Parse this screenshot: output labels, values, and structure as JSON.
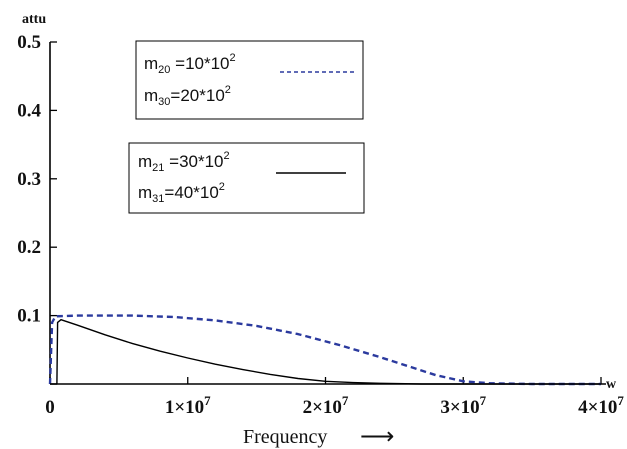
{
  "chart_data": {
    "type": "line",
    "ylabel": "attu",
    "xlabel": "Frequency",
    "xlabel_arrow": "⟶",
    "x_axis_end_label": "w",
    "xlim": [
      0,
      40000000
    ],
    "ylim": [
      0,
      0.5
    ],
    "x_ticks": [
      {
        "value": 0,
        "base": "0",
        "exp": ""
      },
      {
        "value": 10000000,
        "base": "1×10",
        "exp": "7"
      },
      {
        "value": 20000000,
        "base": "2×10",
        "exp": "7"
      },
      {
        "value": 30000000,
        "base": "3×10",
        "exp": "7"
      },
      {
        "value": 40000000,
        "base": "4×10",
        "exp": "7"
      }
    ],
    "y_ticks": [
      {
        "value": 0.1,
        "label": "0.1"
      },
      {
        "value": 0.2,
        "label": "0.2"
      },
      {
        "value": 0.3,
        "label": "0.3"
      },
      {
        "value": 0.4,
        "label": "0.4"
      },
      {
        "value": 0.5,
        "label": "0.5"
      }
    ],
    "series": [
      {
        "style": "dashed",
        "color": "#2b3a9e",
        "legend": [
          {
            "name": "m",
            "sub": "20",
            "rest": " =10*10",
            "sup": "2"
          },
          {
            "name": "m",
            "sub": "30",
            "rest": "=20*10",
            "sup": "2"
          }
        ],
        "points": [
          [
            0,
            0
          ],
          [
            150000,
            0.09
          ],
          [
            400000,
            0.099
          ],
          [
            2000000,
            0.1
          ],
          [
            6000000,
            0.1
          ],
          [
            9000000,
            0.098
          ],
          [
            12000000,
            0.093
          ],
          [
            15000000,
            0.085
          ],
          [
            18000000,
            0.073
          ],
          [
            21000000,
            0.057
          ],
          [
            24000000,
            0.039
          ],
          [
            26000000,
            0.026
          ],
          [
            28000000,
            0.013
          ],
          [
            30000000,
            0.004
          ],
          [
            32000000,
            0.001
          ],
          [
            35000000,
            0
          ],
          [
            40000000,
            0
          ]
        ]
      },
      {
        "style": "solid",
        "color": "#000000",
        "legend": [
          {
            "name": "m",
            "sub": "21",
            "rest": " =30*10",
            "sup": "2"
          },
          {
            "name": "m",
            "sub": "31",
            "rest": "=40*10",
            "sup": "2"
          }
        ],
        "points": [
          [
            0,
            0
          ],
          [
            500000,
            0
          ],
          [
            550000,
            0.09
          ],
          [
            800000,
            0.094
          ],
          [
            2000000,
            0.086
          ],
          [
            4000000,
            0.072
          ],
          [
            6000000,
            0.059
          ],
          [
            8000000,
            0.048
          ],
          [
            10000000,
            0.038
          ],
          [
            12000000,
            0.029
          ],
          [
            14000000,
            0.021
          ],
          [
            16000000,
            0.014
          ],
          [
            18000000,
            0.008
          ],
          [
            20000000,
            0.004
          ],
          [
            22000000,
            0.002
          ],
          [
            24000000,
            0.001
          ],
          [
            27000000,
            0
          ],
          [
            40000000,
            0
          ]
        ]
      }
    ]
  }
}
